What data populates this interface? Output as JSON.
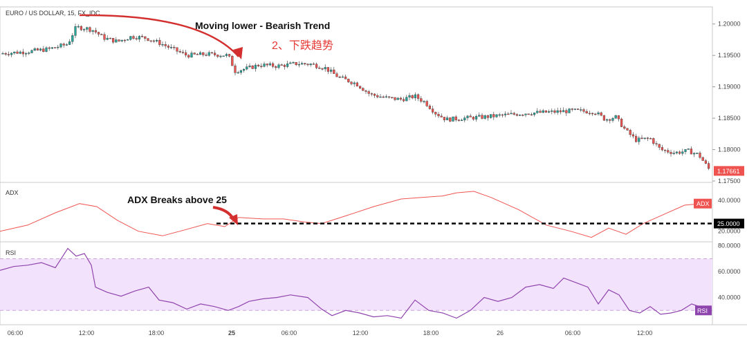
{
  "chart_data": [
    {
      "type": "candlestick",
      "title": "EURO / US DOLLAR, 15, FX_IDC",
      "annotation": "Moving lower - Bearish Trend",
      "annotation_cn": "2、下跌趋势",
      "ylim": [
        1.175,
        1.2025
      ],
      "y_ticks": [
        "1.20000",
        "1.19500",
        "1.19000",
        "1.18500",
        "1.18000",
        "1.17500"
      ],
      "y_tick_values": [
        1.2,
        1.195,
        1.19,
        1.185,
        1.18,
        1.175
      ],
      "last_price": "1.17661",
      "last_price_value": 1.17661,
      "price_path": [
        [
          0,
          1.1953
        ],
        [
          40,
          1.1956
        ],
        [
          70,
          1.196
        ],
        [
          98,
          1.1968
        ],
        [
          110,
          1.1995
        ],
        [
          125,
          1.1993
        ],
        [
          135,
          1.199
        ],
        [
          150,
          1.1978
        ],
        [
          170,
          1.1972
        ],
        [
          190,
          1.198
        ],
        [
          210,
          1.1978
        ],
        [
          230,
          1.197
        ],
        [
          250,
          1.196
        ],
        [
          270,
          1.195
        ],
        [
          300,
          1.1952
        ],
        [
          330,
          1.195
        ],
        [
          340,
          1.1925
        ],
        [
          360,
          1.193
        ],
        [
          375,
          1.1935
        ],
        [
          400,
          1.1933
        ],
        [
          430,
          1.1937
        ],
        [
          450,
          1.1936
        ],
        [
          470,
          1.193
        ],
        [
          490,
          1.1915
        ],
        [
          515,
          1.1905
        ],
        [
          535,
          1.1888
        ],
        [
          560,
          1.1882
        ],
        [
          580,
          1.188
        ],
        [
          600,
          1.1885
        ],
        [
          615,
          1.1875
        ],
        [
          630,
          1.1858
        ],
        [
          645,
          1.1848
        ],
        [
          670,
          1.185
        ],
        [
          700,
          1.1852
        ],
        [
          730,
          1.1855
        ],
        [
          760,
          1.1858
        ],
        [
          800,
          1.186
        ],
        [
          830,
          1.1862
        ],
        [
          860,
          1.186
        ],
        [
          875,
          1.1848
        ],
        [
          890,
          1.1852
        ],
        [
          905,
          1.183
        ],
        [
          920,
          1.1815
        ],
        [
          940,
          1.1818
        ],
        [
          955,
          1.18
        ],
        [
          975,
          1.1795
        ],
        [
          995,
          1.1798
        ],
        [
          1010,
          1.1792
        ],
        [
          1027,
          1.1766
        ]
      ]
    },
    {
      "type": "line",
      "title": "ADX",
      "annotation": "ADX Breaks above 25",
      "series": [
        {
          "name": "ADX",
          "points": [
            [
              0,
              20
            ],
            [
              40,
              24
            ],
            [
              80,
              32
            ],
            [
              115,
              38
            ],
            [
              140,
              36
            ],
            [
              170,
              27
            ],
            [
              200,
              20
            ],
            [
              235,
              17
            ],
            [
              260,
              20
            ],
            [
              300,
              25
            ],
            [
              325,
              23
            ],
            [
              345,
              29
            ],
            [
              380,
              28
            ],
            [
              410,
              28
            ],
            [
              440,
              26
            ],
            [
              465,
              25
            ],
            [
              500,
              30
            ],
            [
              540,
              36
            ],
            [
              580,
              41
            ],
            [
              610,
              42
            ],
            [
              640,
              43
            ],
            [
              660,
              45
            ],
            [
              685,
              46
            ],
            [
              710,
              42
            ],
            [
              750,
              34
            ],
            [
              790,
              24
            ],
            [
              825,
              20
            ],
            [
              855,
              16
            ],
            [
              880,
              22
            ],
            [
              905,
              18
            ],
            [
              930,
              25
            ],
            [
              960,
              31
            ],
            [
              990,
              37
            ],
            [
              1015,
              38
            ]
          ]
        }
      ],
      "y_ticks": [
        "40.0000",
        "20.0000"
      ],
      "y_tick_values": [
        40,
        20
      ],
      "ylim": [
        14,
        50
      ],
      "threshold": 25,
      "threshold_label": "25.0000",
      "last_label": "ADX"
    },
    {
      "type": "line",
      "title": "RSI",
      "series": [
        {
          "name": "RSI",
          "points": [
            [
              0,
              61
            ],
            [
              20,
              64
            ],
            [
              40,
              65
            ],
            [
              60,
              67
            ],
            [
              80,
              63
            ],
            [
              98,
              78
            ],
            [
              110,
              72
            ],
            [
              122,
              74
            ],
            [
              132,
              65
            ],
            [
              138,
              48
            ],
            [
              155,
              44
            ],
            [
              175,
              41
            ],
            [
              195,
              45
            ],
            [
              215,
              48
            ],
            [
              230,
              38
            ],
            [
              250,
              36
            ],
            [
              270,
              31
            ],
            [
              290,
              35
            ],
            [
              310,
              33
            ],
            [
              330,
              30
            ],
            [
              345,
              33
            ],
            [
              360,
              37
            ],
            [
              380,
              39
            ],
            [
              400,
              40
            ],
            [
              420,
              42
            ],
            [
              445,
              40
            ],
            [
              465,
              31
            ],
            [
              480,
              26
            ],
            [
              500,
              30
            ],
            [
              520,
              28
            ],
            [
              540,
              25
            ],
            [
              560,
              26
            ],
            [
              580,
              24
            ],
            [
              600,
              38
            ],
            [
              620,
              30
            ],
            [
              640,
              28
            ],
            [
              660,
              24
            ],
            [
              680,
              30
            ],
            [
              700,
              40
            ],
            [
              720,
              37
            ],
            [
              740,
              40
            ],
            [
              760,
              48
            ],
            [
              780,
              50
            ],
            [
              800,
              47
            ],
            [
              815,
              55
            ],
            [
              830,
              52
            ],
            [
              850,
              48
            ],
            [
              865,
              35
            ],
            [
              880,
              46
            ],
            [
              895,
              42
            ],
            [
              910,
              30
            ],
            [
              925,
              28
            ],
            [
              940,
              33
            ],
            [
              955,
              27
            ],
            [
              970,
              28
            ],
            [
              985,
              30
            ],
            [
              1000,
              35
            ],
            [
              1027,
              30
            ]
          ]
        }
      ],
      "y_ticks": [
        "80.0000",
        "60.0000",
        "40.0000"
      ],
      "y_tick_values": [
        80,
        60,
        40
      ],
      "ylim": [
        20,
        82
      ],
      "band": [
        30,
        70
      ],
      "last_label": "RSI"
    }
  ],
  "x_ticks": [
    "06:00",
    "12:00",
    "18:00",
    "25",
    "06:00",
    "12:00",
    "18:00",
    "26",
    "06:00",
    "12:00"
  ],
  "x_tick_bold": [
    false,
    false,
    false,
    true,
    false,
    false,
    false,
    false,
    false,
    false
  ],
  "x_tick_positions": [
    22,
    125,
    226,
    335,
    418,
    521,
    623,
    723,
    828,
    932
  ],
  "x_tick_domain": [
    0,
    1027
  ],
  "colors": {
    "up": "#26a69a",
    "down": "#ef5350",
    "adx": "#ef5350",
    "rsi": "#8e44ad",
    "rsi_band": "#f3e2fb",
    "arrow": "#d32f2f",
    "cn_text": "#e53935"
  }
}
